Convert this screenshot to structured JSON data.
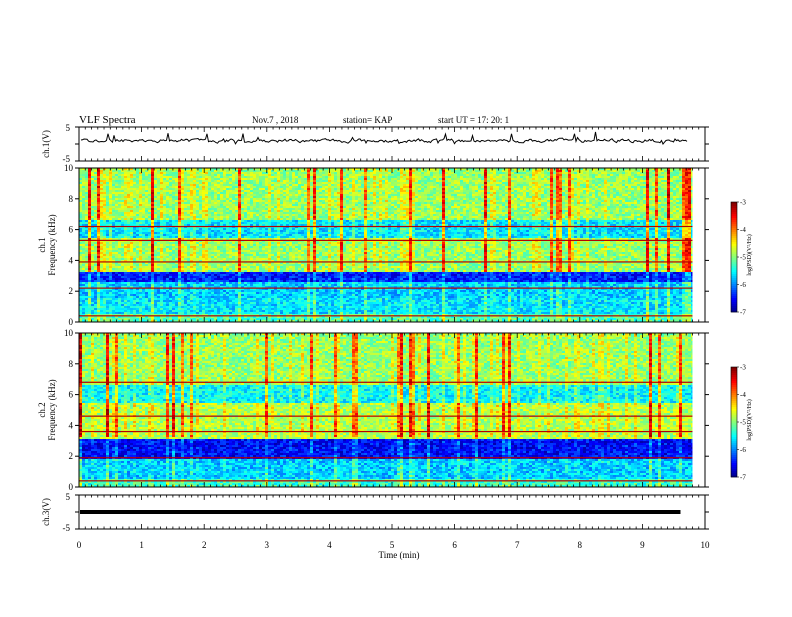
{
  "header": {
    "title": "VLF Spectra",
    "date": "Nov.7 , 2018",
    "station": "station= KAP",
    "start": "start UT = 17: 20: 1"
  },
  "chart_data": [
    {
      "type": "line",
      "ylabel": "ch.1(V)",
      "ylim": [
        -5,
        5
      ],
      "yticks": [
        "5",
        "-5"
      ],
      "note": "noisy waveform hovering near +1 V"
    },
    {
      "type": "heatmap",
      "ylabel_line1": "ch.1",
      "ylabel_line2": "Frequency (kHz)",
      "ylim": [
        0,
        10
      ],
      "yticks": [
        "0",
        "2",
        "4",
        "6",
        "8",
        "10"
      ],
      "colorbar": {
        "label": "log(PSD)(V²/Hz)",
        "range": [
          -7,
          -3
        ],
        "ticks": [
          "-3",
          "-4",
          "-5",
          "-6",
          "-7"
        ]
      },
      "bands": [
        {
          "from": 0.0,
          "to": 0.5,
          "level": -5.2
        },
        {
          "from": 0.5,
          "to": 1.5,
          "level": -5.6
        },
        {
          "from": 1.5,
          "to": 2.6,
          "level": -5.7
        },
        {
          "from": 2.6,
          "to": 3.2,
          "level": -6.4
        },
        {
          "from": 3.2,
          "to": 5.4,
          "level": -4.9
        },
        {
          "from": 5.4,
          "to": 6.6,
          "level": -5.6
        },
        {
          "from": 6.6,
          "to": 10.0,
          "level": -4.9
        }
      ],
      "lines_khz": [
        0.4,
        2.2,
        3.9,
        5.3,
        6.2
      ]
    },
    {
      "type": "heatmap",
      "ylabel_line1": "ch.2",
      "ylabel_line2": "Frequency (kHz)",
      "ylim": [
        0,
        10
      ],
      "yticks": [
        "0",
        "2",
        "4",
        "6",
        "8",
        "10"
      ],
      "colorbar": {
        "label": "log(PSD)(V²/Hz)",
        "range": [
          -7,
          -3
        ],
        "ticks": [
          "-3",
          "-4",
          "-5",
          "-6",
          "-7"
        ]
      },
      "bands": [
        {
          "from": 0.0,
          "to": 0.5,
          "level": -5.3
        },
        {
          "from": 0.5,
          "to": 1.8,
          "level": -5.7
        },
        {
          "from": 1.8,
          "to": 3.1,
          "level": -6.5
        },
        {
          "from": 3.1,
          "to": 5.4,
          "level": -4.8
        },
        {
          "from": 5.4,
          "to": 6.6,
          "level": -5.5
        },
        {
          "from": 6.6,
          "to": 10.0,
          "level": -4.9
        }
      ],
      "lines_khz": [
        0.4,
        1.9,
        3.6,
        4.6,
        6.8
      ]
    },
    {
      "type": "line",
      "ylabel": "ch.3(V)",
      "ylim": [
        -5,
        5
      ],
      "yticks": [
        "5",
        "-5"
      ],
      "constant": 0
    }
  ],
  "xaxis": {
    "label": "Time (min)",
    "range": [
      0,
      10
    ],
    "ticks": [
      "0",
      "1",
      "2",
      "3",
      "4",
      "5",
      "6",
      "7",
      "8",
      "9",
      "10"
    ],
    "data_end": 9.8
  }
}
